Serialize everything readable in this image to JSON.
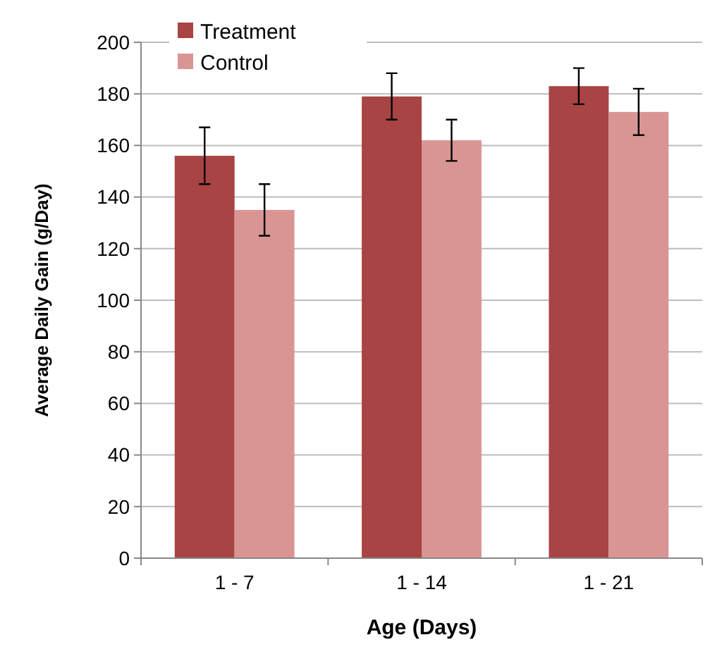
{
  "chart_data": {
    "type": "bar",
    "xlabel": "Age (Days)",
    "ylabel": "Average Daily Gain (g/Day)",
    "categories": [
      "1 - 7",
      "1 - 14",
      "1 - 21"
    ],
    "series": [
      {
        "name": "Treatment",
        "color": "#a84443",
        "values": [
          156,
          179,
          183
        ],
        "errors": [
          11,
          9,
          7
        ]
      },
      {
        "name": "Control",
        "color": "#d99594",
        "values": [
          135,
          162,
          173
        ],
        "errors": [
          10,
          8,
          9
        ]
      }
    ],
    "ylim": [
      0,
      200
    ],
    "yticks": [
      0,
      20,
      40,
      60,
      80,
      100,
      120,
      140,
      160,
      180,
      200
    ],
    "grid": "y",
    "legend": "top left"
  }
}
